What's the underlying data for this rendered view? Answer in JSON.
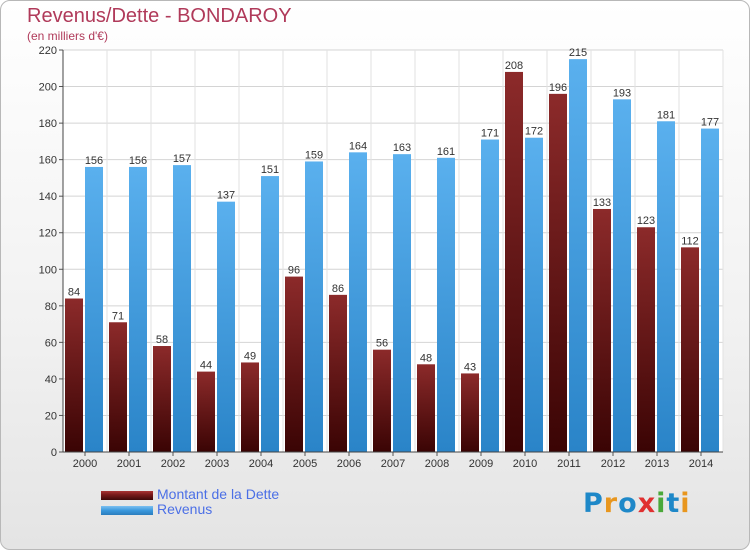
{
  "chart": {
    "title": "Revenus/Dette - BONDAROY",
    "subtitle": "(en milliers d'€)"
  },
  "legend": {
    "items": [
      "Montant de la Dette",
      "Revenus"
    ]
  },
  "logo": {
    "text": "Proxiti",
    "letters": [
      {
        "ch": "P",
        "color": "#1e88c8"
      },
      {
        "ch": "r",
        "color": "#e8961e"
      },
      {
        "ch": "o",
        "color": "#1e88c8"
      },
      {
        "ch": "x",
        "color": "#e03030"
      },
      {
        "ch": "i",
        "color": "#4aa83a"
      },
      {
        "ch": "t",
        "color": "#1e88c8"
      },
      {
        "ch": "i",
        "color": "#e8961e"
      }
    ]
  },
  "colors": {
    "dette": "#7a1a1a",
    "revenus": "#3a98dd",
    "title": "#b03a5a",
    "legend_text": "#4b6fe6"
  },
  "chart_data": {
    "type": "bar",
    "title": "Revenus/Dette - BONDAROY",
    "subtitle": "(en milliers d'€)",
    "categories": [
      "2000",
      "2001",
      "2002",
      "2003",
      "2004",
      "2005",
      "2006",
      "2007",
      "2008",
      "2009",
      "2010",
      "2011",
      "2012",
      "2013",
      "2014"
    ],
    "series": [
      {
        "name": "Montant de la Dette",
        "values": [
          84,
          71,
          58,
          44,
          49,
          96,
          86,
          56,
          48,
          43,
          208,
          196,
          133,
          123,
          112
        ]
      },
      {
        "name": "Revenus",
        "values": [
          156,
          156,
          157,
          137,
          151,
          159,
          164,
          163,
          161,
          171,
          172,
          215,
          193,
          181,
          177
        ]
      }
    ],
    "ylim": [
      0,
      220
    ],
    "yticks": [
      0,
      20,
      40,
      60,
      80,
      100,
      120,
      140,
      160,
      180,
      200,
      220
    ],
    "grid": true,
    "legend_position": "bottom-left"
  }
}
